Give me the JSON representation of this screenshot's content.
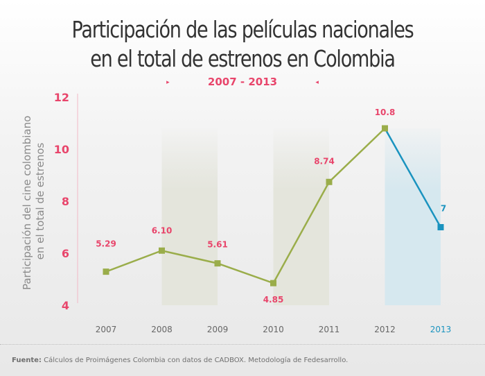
{
  "header": {
    "title_line1": "Participación de las películas nacionales",
    "title_line2": "en el total de estrenos en Colombia",
    "subtitle": "2007 - 2013",
    "arrow_left": "▸",
    "arrow_right": "◂"
  },
  "footer": {
    "source_label": "Fuente:",
    "source_text": "Cálculos de Proimágenes Colombia con datos de CADBOX. Metodología de Fedesarrollo."
  },
  "colors": {
    "accent": "#e8456b",
    "historic_series": "#9aad4a",
    "forecast_series": "#1a93bf",
    "band_historic": "#e4e5dc",
    "band_forecast": "#d6e8ef",
    "tick_text": "#666666"
  },
  "chart_data": {
    "type": "line",
    "title": "Participación de las películas nacionales en el total de estrenos en Colombia",
    "subtitle": "2007 - 2013",
    "xlabel": "",
    "ylabel_line1": "Participación del cine colombiano",
    "ylabel_line2": "en el total de estrenos",
    "categories": [
      "2007",
      "2008",
      "2009",
      "2010",
      "2011",
      "2012",
      "2013"
    ],
    "values": [
      5.29,
      6.1,
      5.61,
      4.85,
      8.74,
      10.8,
      7
    ],
    "data_labels": [
      "5.29",
      "6.10",
      "5.61",
      "4.85",
      "8.74",
      "10.8",
      "7"
    ],
    "highlight_category": "2013",
    "shaded_bands": [
      "2008-2009",
      "2010-2011",
      "2012-2013"
    ],
    "ylim": [
      4,
      12
    ],
    "yticks": [
      4,
      6,
      8,
      10,
      12
    ],
    "ytick_labels": [
      "4",
      "6",
      "8",
      "10",
      "12"
    ],
    "grid": false,
    "legend": "none"
  }
}
